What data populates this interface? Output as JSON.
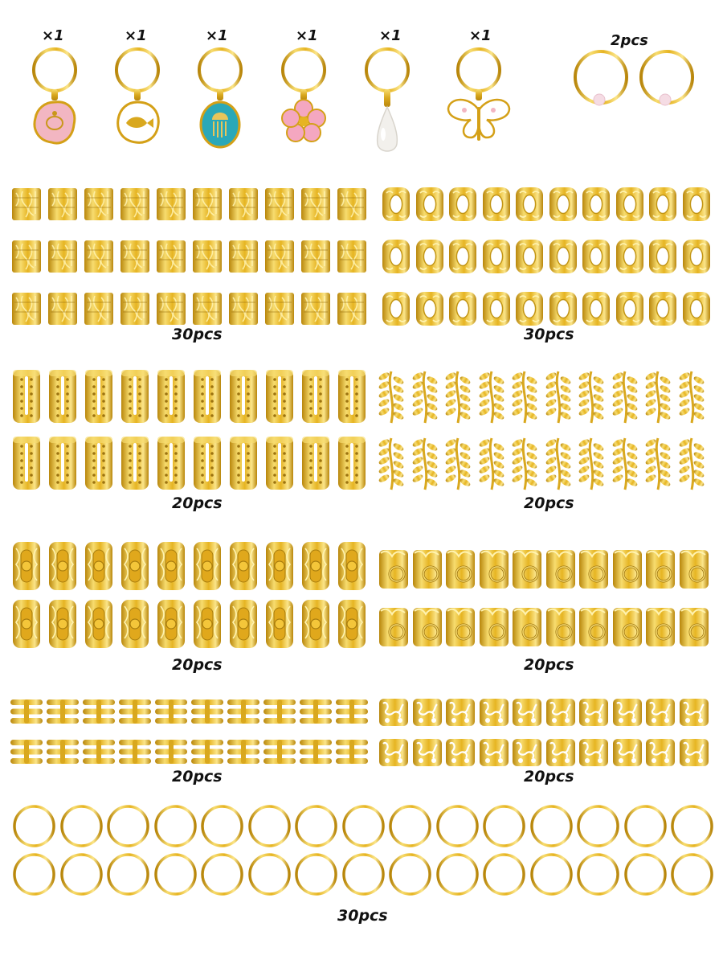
{
  "charms": [
    {
      "qty": "×1",
      "name": "turtle-charm",
      "color": "#f2b6c2"
    },
    {
      "qty": "×1",
      "name": "fish-charm",
      "color": "#ffffff"
    },
    {
      "qty": "×1",
      "name": "jellyfish-charm",
      "color": "#2aa8b8"
    },
    {
      "qty": "×1",
      "name": "flower-charm",
      "color": "#f4a7c0"
    },
    {
      "qty": "×1",
      "name": "pearl-drop-charm",
      "color": "#f2f0ec"
    },
    {
      "qty": "×1",
      "name": "butterfly-charm",
      "color": "#ffffff"
    }
  ],
  "pearl_rings": {
    "qty": "2pcs"
  },
  "sets": [
    {
      "id": "filigree-square-cuffs",
      "qty": "30pcs"
    },
    {
      "id": "open-cutout-cuffs",
      "qty": "30pcs"
    },
    {
      "id": "tall-perforated-tubes",
      "qty": "20pcs"
    },
    {
      "id": "leaf-vine-cuffs",
      "qty": "20pcs"
    },
    {
      "id": "bead-filigree-tubes",
      "qty": "20pcs"
    },
    {
      "id": "flower-ring-cuffs",
      "qty": "20pcs"
    },
    {
      "id": "triple-band-cuffs",
      "qty": "20pcs"
    },
    {
      "id": "lace-scroll-cuffs",
      "qty": "20pcs"
    },
    {
      "id": "plain-gold-rings",
      "qty": "30pcs"
    }
  ],
  "colors": {
    "gold": "#e6b422",
    "gold_light": "#f7dc6f",
    "gold_dark": "#b8860b",
    "background": "#ffffff"
  }
}
